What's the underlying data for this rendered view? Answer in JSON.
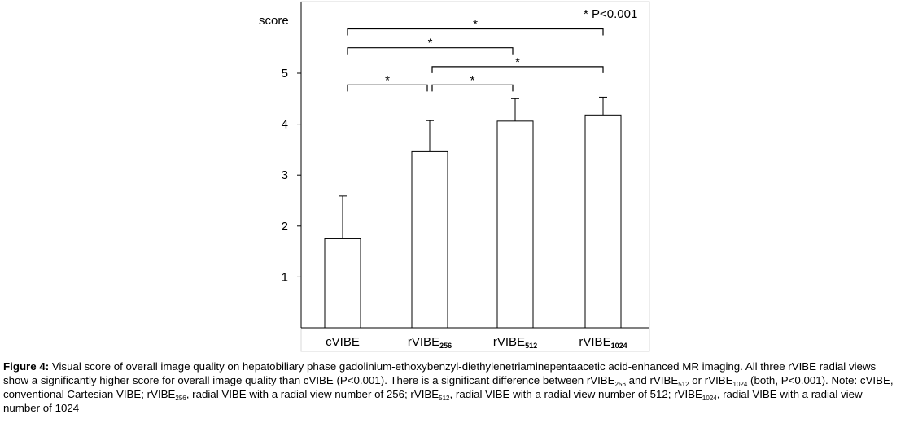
{
  "chart_data": {
    "type": "bar",
    "ylabel": "score",
    "ylim": [
      0,
      6.2
    ],
    "yticks": [
      "1",
      "2",
      "3",
      "4",
      "5"
    ],
    "grid": false,
    "categories": [
      {
        "base": "cVIBE",
        "sub": ""
      },
      {
        "base": "rVIBE",
        "sub": "256"
      },
      {
        "base": "rVIBE",
        "sub": "512"
      },
      {
        "base": "rVIBE",
        "sub": "1024"
      }
    ],
    "values": [
      1.75,
      3.46,
      4.06,
      4.18
    ],
    "errors": [
      0.84,
      0.61,
      0.44,
      0.35
    ],
    "annotation": "* P<0.001",
    "significance": [
      {
        "from": 0,
        "to": 3,
        "level": 5.87,
        "marker": "*"
      },
      {
        "from": 0,
        "to": 2,
        "level": 5.5,
        "marker": "*"
      },
      {
        "from": 1,
        "to": 3,
        "level": 5.13,
        "marker": "*"
      },
      {
        "from": 0,
        "to": 1,
        "level": 4.77,
        "marker": "*"
      },
      {
        "from": 1,
        "to": 2,
        "level": 4.77,
        "marker": "*"
      }
    ]
  },
  "caption": {
    "label": "Figure 4:",
    "parts": [
      {
        "t": " Visual score of overall image quality on hepatobiliary phase gadolinium-ethoxybenzyl-diethylenetriaminepentaacetic acid-enhanced MR imaging. All three rVIBE radial views show a significantly higher score for overall image quality than cVIBE (P<0.001). There is a significant difference between rVIBE"
      },
      {
        "s": "256"
      },
      {
        "t": " and rVIBE"
      },
      {
        "s": "512"
      },
      {
        "t": " or rVIBE"
      },
      {
        "s": "1024"
      },
      {
        "t": " (both, P<0.001). Note: cVIBE, conventional Cartesian VIBE; rVIBE"
      },
      {
        "s": "256"
      },
      {
        "t": ", radial VIBE with a radial view number of 256; rVIBE"
      },
      {
        "s": "512"
      },
      {
        "t": ", radial VIBE with a radial view number of 512; rVIBE"
      },
      {
        "s": "1024"
      },
      {
        "t": ", radial VIBE with a radial view number of 1024"
      }
    ]
  }
}
